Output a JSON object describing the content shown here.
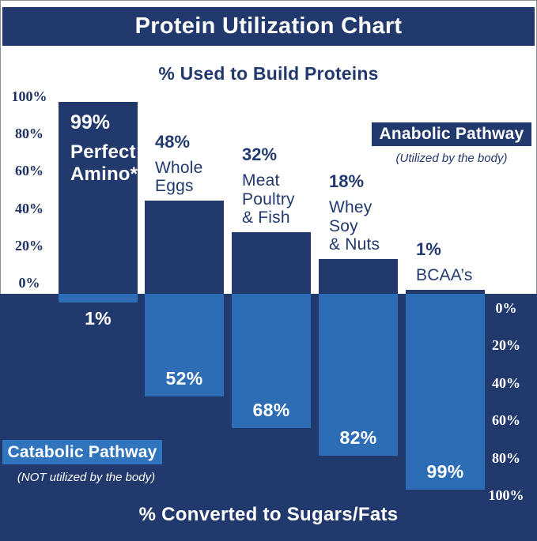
{
  "header": {
    "title": "Protein Utilization Chart"
  },
  "colors": {
    "navy": "#21396D",
    "light_blue": "#2D6DB5",
    "badge_blue": "#2F74BC",
    "background": "#FFFFFF"
  },
  "chart_data": {
    "type": "bar",
    "title": "Protein Utilization Chart",
    "categories": [
      "Perfect Amino*",
      "Whole Eggs",
      "Meat Poultry & Fish",
      "Whey Soy & Nuts",
      "BCAA’s"
    ],
    "category_lines": [
      [
        "Perfect",
        "Amino*"
      ],
      [
        "Whole",
        "Eggs"
      ],
      [
        "Meat",
        "Poultry",
        "& Fish"
      ],
      [
        "Whey",
        "Soy",
        "& Nuts"
      ],
      [
        "BCAA’s"
      ]
    ],
    "series": [
      {
        "name": "% Used to Build Proteins",
        "direction": "up",
        "color": "#21396D",
        "values": [
          99,
          48,
          32,
          18,
          1
        ]
      },
      {
        "name": "% Converted to Sugars/Fats",
        "direction": "down",
        "color": "#2D6DB5",
        "values": [
          1,
          52,
          68,
          82,
          99
        ]
      }
    ],
    "top_axis": {
      "label": "% Used to Build Proteins",
      "ticks": [
        "100%",
        "80%",
        "60%",
        "40%",
        "20%",
        "0%"
      ],
      "range": [
        0,
        100
      ]
    },
    "bottom_axis": {
      "label": "% Converted to Sugars/Fats",
      "ticks": [
        "0%",
        "20%",
        "40%",
        "60%",
        "80%",
        "100%"
      ],
      "range": [
        0,
        100
      ]
    },
    "legend": [
      {
        "label": "Anabolic Pathway",
        "caption": "(Utilized by the body)"
      },
      {
        "label": "Catabolic Pathway",
        "caption": "(NOT utilized by the body)"
      }
    ],
    "grid": false,
    "legend_position": "top-right and bottom-left badges"
  }
}
